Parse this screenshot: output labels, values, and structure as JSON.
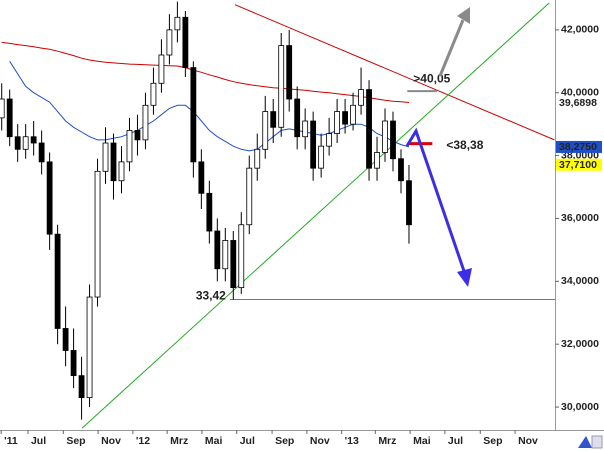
{
  "chart_data": {
    "type": "candlestick",
    "xlim": [
      "2011-05-13",
      "2014-01-10"
    ],
    "ylim": [
      29.27,
      42.95
    ],
    "xticks": [
      {
        "value": "2011-05-15",
        "label": "'11"
      },
      {
        "value": "2011-07-01",
        "label": "Jul"
      },
      {
        "value": "2011-09-01",
        "label": "Sep"
      },
      {
        "value": "2011-11-01",
        "label": "Nov"
      },
      {
        "value": "2012-01-01",
        "label": "'12"
      },
      {
        "value": "2012-03-01",
        "label": "Mrz"
      },
      {
        "value": "2012-05-01",
        "label": "Mai"
      },
      {
        "value": "2012-07-01",
        "label": "Jul"
      },
      {
        "value": "2012-09-01",
        "label": "Sep"
      },
      {
        "value": "2012-11-01",
        "label": "Nov"
      },
      {
        "value": "2013-01-01",
        "label": "'13"
      },
      {
        "value": "2013-03-01",
        "label": "Mrz"
      },
      {
        "value": "2013-05-01",
        "label": "Mai"
      },
      {
        "value": "2013-07-01",
        "label": "Jul"
      },
      {
        "value": "2013-09-01",
        "label": "Sep"
      },
      {
        "value": "2013-11-01",
        "label": "Nov"
      }
    ],
    "yticks": [
      {
        "value": 30,
        "label": "30,0000"
      },
      {
        "value": 32,
        "label": "32,0000"
      },
      {
        "value": 34,
        "label": "34,0000"
      },
      {
        "value": 36,
        "label": "36,0000"
      },
      {
        "value": 38,
        "label": "38,0000"
      },
      {
        "value": 40,
        "label": "40,0000"
      },
      {
        "value": 42,
        "label": "42,0000"
      }
    ],
    "up_color": "#ffffff",
    "down_color": "#000000",
    "x": [
      "2011-05-16",
      "2011-05-30",
      "2011-06-13",
      "2011-06-27",
      "2011-07-11",
      "2011-07-25",
      "2011-08-08",
      "2011-08-22",
      "2011-09-05",
      "2011-09-19",
      "2011-10-03",
      "2011-10-17",
      "2011-10-31",
      "2011-11-14",
      "2011-11-28",
      "2011-12-12",
      "2011-12-26",
      "2012-01-09",
      "2012-01-23",
      "2012-02-06",
      "2012-02-20",
      "2012-03-05",
      "2012-03-19",
      "2012-04-02",
      "2012-04-16",
      "2012-04-30",
      "2012-05-14",
      "2012-05-28",
      "2012-06-11",
      "2012-06-25",
      "2012-07-09",
      "2012-07-23",
      "2012-08-06",
      "2012-08-20",
      "2012-09-03",
      "2012-09-17",
      "2012-10-01",
      "2012-10-15",
      "2012-10-29",
      "2012-11-12",
      "2012-11-26",
      "2012-12-10",
      "2012-12-24",
      "2013-01-07",
      "2013-01-21",
      "2013-02-04",
      "2013-02-18",
      "2013-03-04",
      "2013-03-18",
      "2013-04-01",
      "2013-04-15",
      "2013-04-29"
    ],
    "open": [
      39.2,
      39.8,
      38.6,
      38.2,
      38.6,
      38.4,
      37.8,
      35.5,
      32.5,
      31.8,
      31.0,
      30.3,
      33.5,
      37.5,
      38.4,
      37.2,
      37.8,
      38.8,
      38.5,
      39.6,
      40.3,
      41.2,
      42.0,
      42.4,
      40.8,
      37.8,
      36.8,
      35.6,
      34.4,
      35.3,
      33.8,
      35.8,
      37.6,
      38.2,
      39.4,
      38.9,
      41.5,
      39.8,
      38.6,
      39.1,
      37.6,
      38.3,
      38.7,
      39.4,
      39.0,
      39.6,
      40.1,
      37.6,
      38.1,
      39.1,
      37.9,
      37.2
    ],
    "high": [
      40.3,
      40.1,
      39.0,
      39.0,
      39.1,
      38.8,
      38.1,
      35.8,
      33.2,
      32.5,
      31.6,
      33.9,
      37.9,
      38.9,
      38.7,
      38.3,
      39.2,
      39.3,
      40.0,
      40.8,
      41.7,
      42.5,
      42.9,
      42.6,
      41.0,
      38.2,
      37.2,
      36.0,
      35.7,
      35.6,
      36.2,
      38.0,
      38.7,
      39.9,
      39.8,
      41.9,
      42.0,
      40.2,
      39.5,
      39.4,
      38.7,
      39.2,
      39.8,
      39.8,
      40.0,
      40.8,
      40.4,
      38.6,
      39.5,
      39.4,
      38.2,
      37.7
    ],
    "low": [
      38.8,
      38.3,
      37.8,
      37.9,
      38.0,
      37.4,
      35.0,
      32.0,
      31.3,
      30.6,
      29.6,
      30.0,
      33.2,
      37.1,
      36.6,
      36.8,
      37.5,
      38.0,
      38.2,
      39.3,
      40.0,
      40.9,
      41.6,
      40.5,
      37.3,
      36.3,
      35.2,
      34.0,
      34.0,
      33.42,
      33.6,
      35.5,
      37.2,
      37.9,
      38.4,
      38.6,
      39.4,
      38.2,
      38.2,
      37.2,
      37.3,
      38.0,
      38.4,
      38.7,
      38.8,
      39.3,
      37.2,
      37.2,
      37.8,
      37.5,
      36.8,
      35.2
    ],
    "close": [
      39.8,
      38.6,
      38.2,
      38.6,
      38.4,
      37.8,
      35.5,
      32.5,
      31.8,
      31.0,
      30.3,
      33.5,
      37.5,
      38.4,
      37.2,
      37.8,
      38.8,
      38.5,
      39.6,
      40.3,
      41.2,
      42.0,
      42.4,
      40.8,
      37.8,
      36.8,
      35.6,
      34.4,
      35.3,
      33.8,
      35.8,
      37.6,
      38.2,
      39.4,
      38.9,
      41.5,
      39.8,
      38.6,
      39.1,
      37.6,
      38.3,
      38.7,
      39.4,
      39.0,
      39.6,
      40.1,
      37.6,
      38.1,
      39.1,
      37.9,
      37.2,
      35.8
    ],
    "series": [
      {
        "color": "#cc0000",
        "values": [
          41.6,
          41.57,
          41.53,
          41.5,
          41.46,
          41.42,
          41.38,
          41.32,
          41.25,
          41.18,
          41.1,
          41.04,
          41.0,
          40.97,
          40.95,
          40.93,
          40.91,
          40.9,
          40.89,
          40.88,
          40.87,
          40.86,
          40.85,
          40.8,
          40.72,
          40.65,
          40.57,
          40.5,
          40.42,
          40.35,
          40.3,
          40.26,
          40.22,
          40.19,
          40.16,
          40.14,
          40.12,
          40.1,
          40.08,
          40.05,
          40.02,
          40.0,
          39.97,
          39.94,
          39.91,
          39.88,
          39.84,
          39.8,
          39.76,
          39.73,
          39.71,
          39.69
        ]
      },
      {
        "color": "#1f4fc8",
        "values": [
          null,
          41.0,
          40.6,
          40.2,
          40.0,
          39.85,
          39.7,
          39.4,
          39.1,
          38.9,
          38.75,
          38.6,
          38.5,
          38.5,
          38.55,
          38.6,
          38.7,
          38.8,
          38.95,
          39.1,
          39.3,
          39.5,
          39.6,
          39.6,
          39.4,
          39.1,
          38.8,
          38.6,
          38.45,
          38.3,
          38.2,
          38.15,
          38.2,
          38.4,
          38.6,
          38.8,
          38.85,
          38.8,
          38.75,
          38.7,
          38.65,
          38.7,
          38.8,
          38.9,
          39.0,
          39.0,
          38.9,
          38.7,
          38.6,
          38.45,
          38.35,
          38.275
        ]
      }
    ],
    "trend_lines": [
      {
        "color": "#cc0000",
        "x": [
          "2012-06-28",
          "2014-01-09"
        ],
        "values": [
          42.8,
          38.5
        ]
      },
      {
        "color": "#22aa22",
        "x": [
          "2011-10-04",
          "2013-12-31"
        ],
        "values": [
          29.33,
          42.86
        ]
      }
    ],
    "levels": [
      {
        "label": "33,42",
        "value": 33.42,
        "color": "#777777",
        "x": [
          "2012-06-19",
          "2014-01-10"
        ]
      },
      {
        "label": "<38,38",
        "value": 38.38,
        "color": "#e00000",
        "x": [
          "2013-04-27",
          "2013-06-09"
        ]
      },
      {
        "label": ">40,05",
        "value": 40.05,
        "color": "#888888",
        "x": [
          "2013-04-26",
          "2013-06-17"
        ]
      }
    ],
    "price_labels": [
      {
        "value": 39.6898,
        "label": "39,6898",
        "color": "#cc0000",
        "background": "#ffffff"
      },
      {
        "value": 38.275,
        "label": "38,2750",
        "color": "#ffffff",
        "background": "#1f4fc8"
      },
      {
        "value": 37.71,
        "label": "37,7100",
        "color": "#000000",
        "background": "#ffff00"
      }
    ]
  }
}
